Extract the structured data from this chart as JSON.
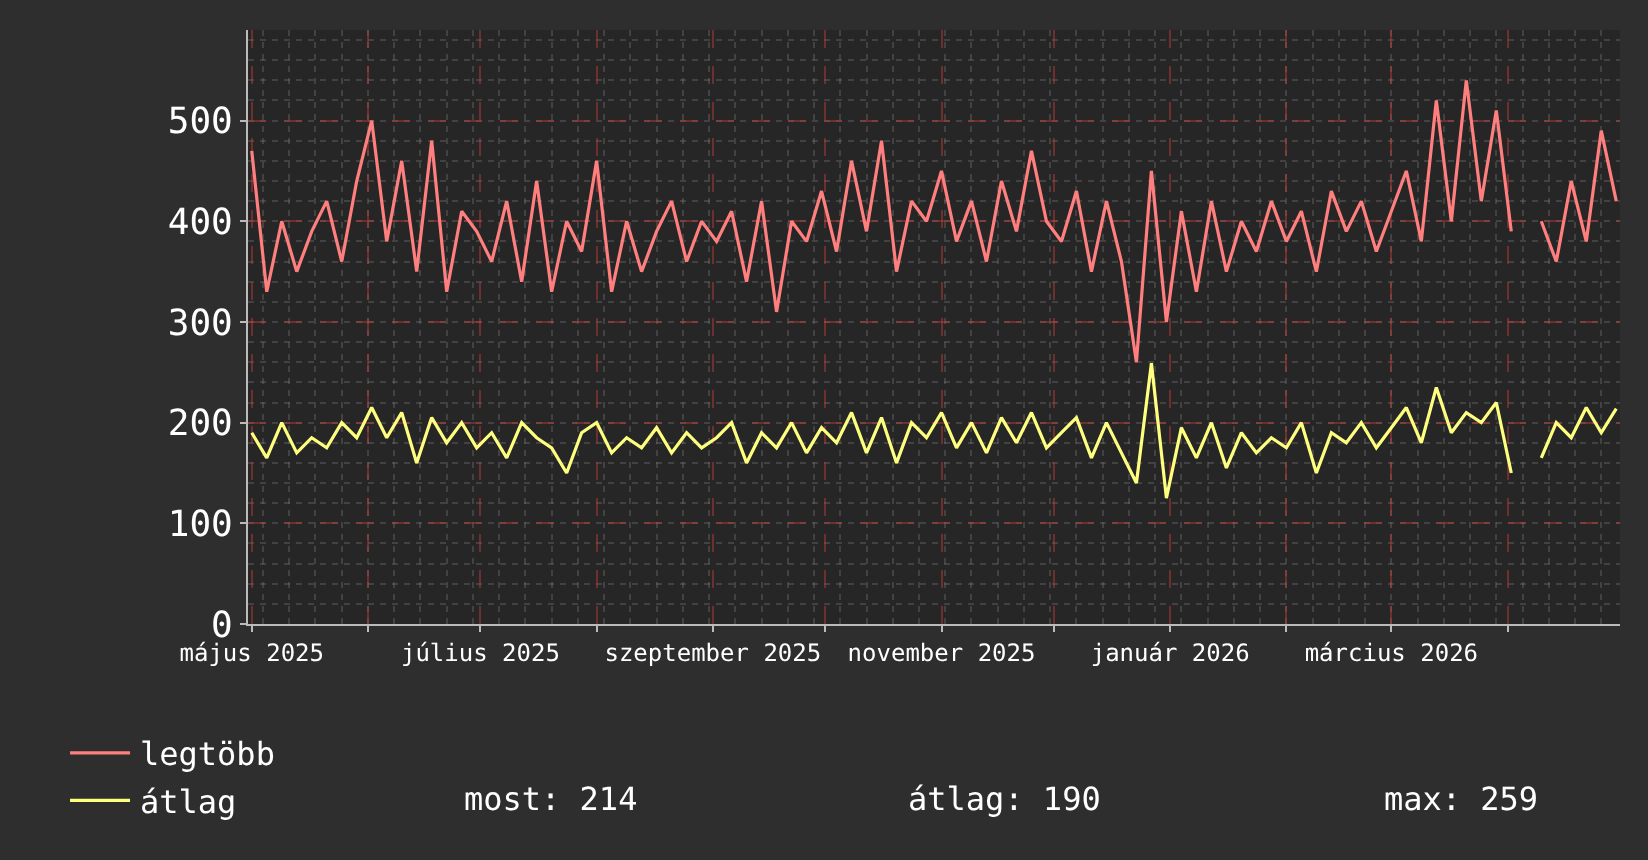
{
  "chart_data": {
    "type": "line",
    "x": [
      "2025-05-01",
      "2025-05-05",
      "2025-05-09",
      "2025-05-13",
      "2025-05-17",
      "2025-05-21",
      "2025-05-25",
      "2025-05-29",
      "2025-06-02",
      "2025-06-06",
      "2025-06-10",
      "2025-06-14",
      "2025-06-18",
      "2025-06-22",
      "2025-06-26",
      "2025-06-30",
      "2025-07-04",
      "2025-07-08",
      "2025-07-12",
      "2025-07-16",
      "2025-07-20",
      "2025-07-24",
      "2025-07-28",
      "2025-08-01",
      "2025-08-05",
      "2025-08-09",
      "2025-08-13",
      "2025-08-17",
      "2025-08-21",
      "2025-08-25",
      "2025-08-29",
      "2025-09-02",
      "2025-09-06",
      "2025-09-10",
      "2025-09-14",
      "2025-09-18",
      "2025-09-22",
      "2025-09-26",
      "2025-09-30",
      "2025-10-04",
      "2025-10-08",
      "2025-10-12",
      "2025-10-16",
      "2025-10-20",
      "2025-10-24",
      "2025-10-28",
      "2025-11-01",
      "2025-11-05",
      "2025-11-09",
      "2025-11-13",
      "2025-11-17",
      "2025-11-21",
      "2025-11-25",
      "2025-11-29",
      "2025-12-03",
      "2025-12-07",
      "2025-12-11",
      "2025-12-15",
      "2025-12-19",
      "2025-12-23",
      "2025-12-27",
      "2025-12-31",
      "2026-01-04",
      "2026-01-08",
      "2026-01-12",
      "2026-01-16",
      "2026-01-20",
      "2026-01-24",
      "2026-01-28",
      "2026-02-01",
      "2026-02-05",
      "2026-02-09",
      "2026-02-13",
      "2026-02-17",
      "2026-02-21",
      "2026-02-25",
      "2026-03-01",
      "2026-03-05",
      "2026-03-09",
      "2026-03-13",
      "2026-03-17",
      "2026-03-21",
      "2026-03-25",
      "2026-03-29",
      "2026-04-02",
      "2026-04-06",
      "2026-04-10",
      "2026-04-14",
      "2026-04-18",
      "2026-04-22",
      "2026-04-26",
      "2026-04-30"
    ],
    "series": [
      {
        "name": "legtöbb",
        "color": "#ff7f7f",
        "values": [
          470,
          330,
          400,
          350,
          390,
          420,
          360,
          440,
          500,
          380,
          460,
          350,
          480,
          330,
          410,
          390,
          360,
          420,
          340,
          440,
          330,
          400,
          370,
          460,
          330,
          400,
          350,
          390,
          420,
          360,
          400,
          380,
          410,
          340,
          420,
          310,
          400,
          380,
          430,
          370,
          460,
          390,
          480,
          350,
          420,
          400,
          450,
          380,
          420,
          360,
          440,
          390,
          470,
          400,
          380,
          430,
          350,
          420,
          360,
          260,
          450,
          300,
          410,
          330,
          420,
          350,
          400,
          370,
          420,
          380,
          410,
          350,
          430,
          390,
          420,
          370,
          410,
          450,
          380,
          520,
          400,
          540,
          420,
          510,
          390,
          null,
          400,
          360,
          440,
          380,
          490,
          420
        ]
      },
      {
        "name": "átlag",
        "color": "#ffff7f",
        "values": [
          190,
          165,
          200,
          170,
          185,
          175,
          200,
          185,
          215,
          185,
          210,
          160,
          205,
          180,
          200,
          175,
          190,
          165,
          200,
          185,
          175,
          150,
          190,
          200,
          170,
          185,
          175,
          195,
          170,
          190,
          175,
          185,
          200,
          160,
          190,
          175,
          200,
          170,
          195,
          180,
          210,
          170,
          205,
          160,
          200,
          185,
          210,
          175,
          200,
          170,
          205,
          180,
          210,
          175,
          190,
          205,
          165,
          200,
          170,
          140,
          259,
          125,
          195,
          165,
          200,
          155,
          190,
          170,
          185,
          175,
          200,
          150,
          190,
          180,
          200,
          175,
          195,
          215,
          180,
          235,
          190,
          210,
          200,
          220,
          150,
          null,
          165,
          200,
          185,
          215,
          190,
          214
        ]
      }
    ],
    "xlim": [
      "2025-04-30",
      "2026-05-01"
    ],
    "xticks": [
      {
        "value": "2025-05-01",
        "label": "május 2025"
      },
      {
        "value": "2025-06-01",
        "label": null
      },
      {
        "value": "2025-07-01",
        "label": "július 2025"
      },
      {
        "value": "2025-08-01",
        "label": null
      },
      {
        "value": "2025-09-01",
        "label": "szeptember 2025"
      },
      {
        "value": "2025-10-01",
        "label": null
      },
      {
        "value": "2025-11-01",
        "label": "november 2025"
      },
      {
        "value": "2025-12-01",
        "label": null
      },
      {
        "value": "2026-01-01",
        "label": "január 2026"
      },
      {
        "value": "2026-02-01",
        "label": null
      },
      {
        "value": "2026-03-01",
        "label": "március 2026"
      },
      {
        "value": "2026-04-01",
        "label": null
      }
    ],
    "ylim": [
      0,
      590
    ],
    "yticks": [
      0,
      100,
      200,
      300,
      400,
      500
    ],
    "grid": true,
    "legend": "bottom left",
    "annotations": [
      "most: 214",
      "átlag: 190",
      "max: 259"
    ]
  }
}
